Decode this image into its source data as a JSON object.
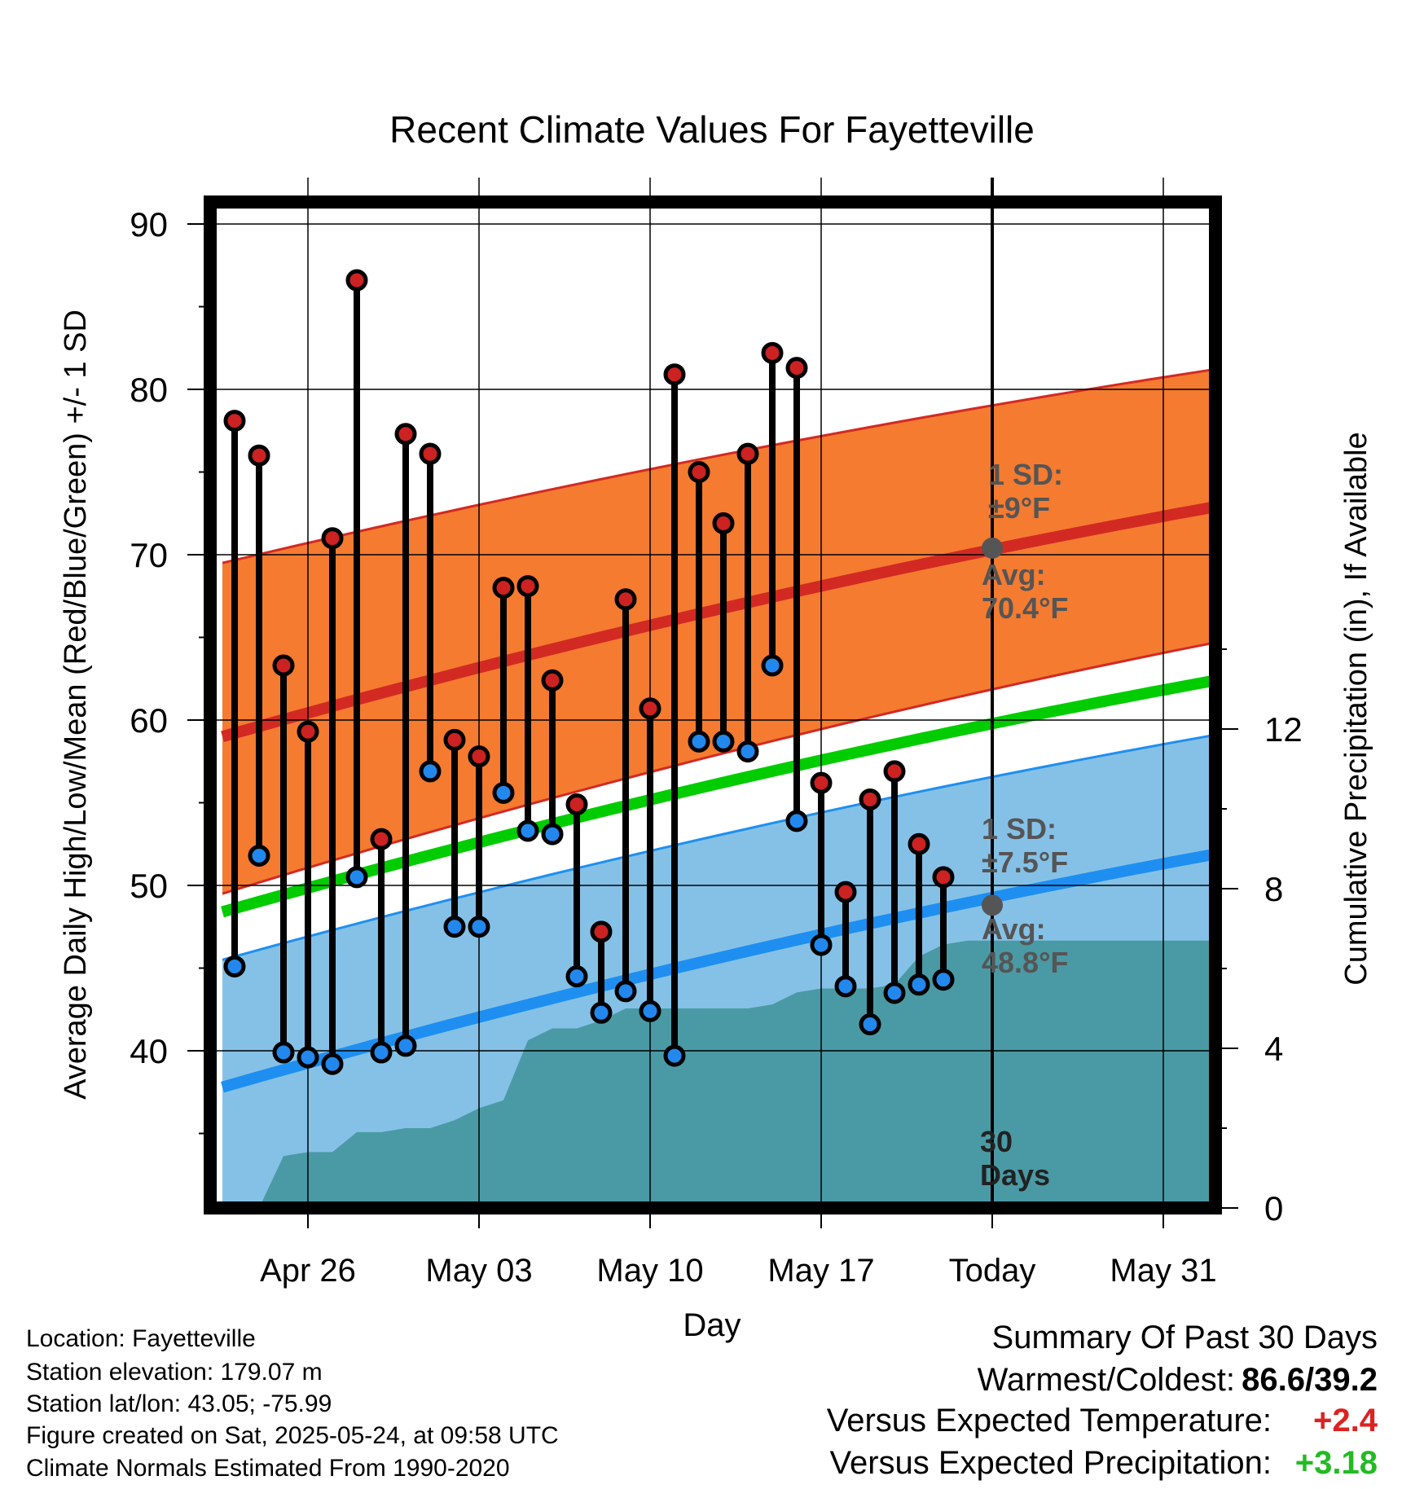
{
  "chart_data": {
    "type": "line",
    "title": "Recent Climate Values For Fayetteville",
    "xlabel": "Day",
    "ylabel": "Average Daily High/Low/Mean (Red/Blue/Green) +/- 1 SD",
    "y2label": "Cumulative Precipitation (in), If Available",
    "ylim": [
      31,
      92
    ],
    "y_ticks": [
      40,
      50,
      60,
      70,
      80,
      90
    ],
    "y2lim": [
      0,
      30
    ],
    "y2_ticks": [
      0,
      4,
      8,
      12
    ],
    "x_tick_labels": [
      "Apr 26",
      "May 03",
      "May 10",
      "May 17",
      "Today",
      "May 31"
    ],
    "x_tick_days": [
      3,
      10,
      17,
      24,
      31,
      38
    ],
    "xlim": [
      -0.5,
      40.5
    ],
    "grid": true,
    "days": [
      0,
      1,
      2,
      3,
      4,
      5,
      6,
      7,
      8,
      9,
      10,
      11,
      12,
      13,
      14,
      15,
      16,
      17,
      18,
      19,
      20,
      21,
      22,
      23,
      24,
      25,
      26,
      27,
      28,
      29
    ],
    "daily_high": [
      78.1,
      76.0,
      63.3,
      59.3,
      71.0,
      86.6,
      52.8,
      77.3,
      76.1,
      58.8,
      57.8,
      68.0,
      68.1,
      62.4,
      54.9,
      47.2,
      67.3,
      60.7,
      80.9,
      75.0,
      71.9,
      76.1,
      82.2,
      81.3,
      56.2,
      49.6,
      55.2,
      56.9,
      52.5,
      50.5
    ],
    "daily_low": [
      45.1,
      51.8,
      39.9,
      39.6,
      39.2,
      50.5,
      39.9,
      40.3,
      56.9,
      47.5,
      47.5,
      55.6,
      53.3,
      53.1,
      44.5,
      42.3,
      43.6,
      42.4,
      39.7,
      58.7,
      58.7,
      58.1,
      63.3,
      53.9,
      46.4,
      43.9,
      41.6,
      43.5,
      44.0,
      44.3
    ],
    "normal_high_avg_range": [
      59.0,
      73.0
    ],
    "normal_low_avg_range": [
      37.8,
      52.0
    ],
    "normal_mean_range": [
      48.4,
      62.5
    ],
    "normal_band_x_range": [
      -0.5,
      40.5
    ],
    "precip_cumulative": [
      0,
      0,
      1.3,
      1.4,
      1.4,
      1.9,
      1.9,
      2.0,
      2.0,
      2.2,
      2.5,
      2.7,
      4.2,
      4.5,
      4.5,
      4.7,
      5.0,
      5.0,
      5.0,
      5.0,
      5.0,
      5.0,
      5.1,
      5.4,
      5.5,
      5.5,
      5.5,
      5.6,
      6.3,
      6.6,
      6.7
    ],
    "today_marker": {
      "high_avg": 70.4,
      "low_avg": 48.8,
      "label": "30 Days"
    },
    "annotations": {
      "high_sd_line1": "1 SD:",
      "high_sd_line2": "±9°F",
      "high_avg_line1": "Avg:",
      "high_avg_line2": "70.4°F",
      "low_sd_line1": "1 SD:",
      "low_sd_line2": "±7.5°F",
      "low_avg_line1": "Avg:",
      "low_avg_line2": "48.8°F",
      "days_line1": "30",
      "days_line2": "Days"
    },
    "colors": {
      "high_band": "#f47b30",
      "high_line": "#d22a23",
      "low_band": "#85c1e7",
      "low_line": "#1e8ff0",
      "mean_line": "#00cc00",
      "precip": "#4a9aa5",
      "high_dot": "#cc2222",
      "low_dot": "#2288ee",
      "annotation": "#555555"
    }
  },
  "info": {
    "location": "Location: Fayetteville",
    "elevation": "Station elevation: 179.07 m",
    "latlon": "Station lat/lon: 43.05; -75.99",
    "created": "Figure created on Sat, 2025-05-24, at 09:58 UTC",
    "normals": "Climate Normals Estimated From 1990-2020"
  },
  "summary": {
    "heading": "Summary Of Past 30 Days",
    "warm_cold_label": "Warmest/Coldest:",
    "warm_cold_value": "86.6/39.2",
    "temp_label": "Versus Expected Temperature:",
    "temp_value": "+2.4",
    "temp_color": "#dd2222",
    "precip_label": "Versus Expected Precipitation:",
    "precip_value": "+3.18",
    "precip_color": "#22bb22"
  }
}
